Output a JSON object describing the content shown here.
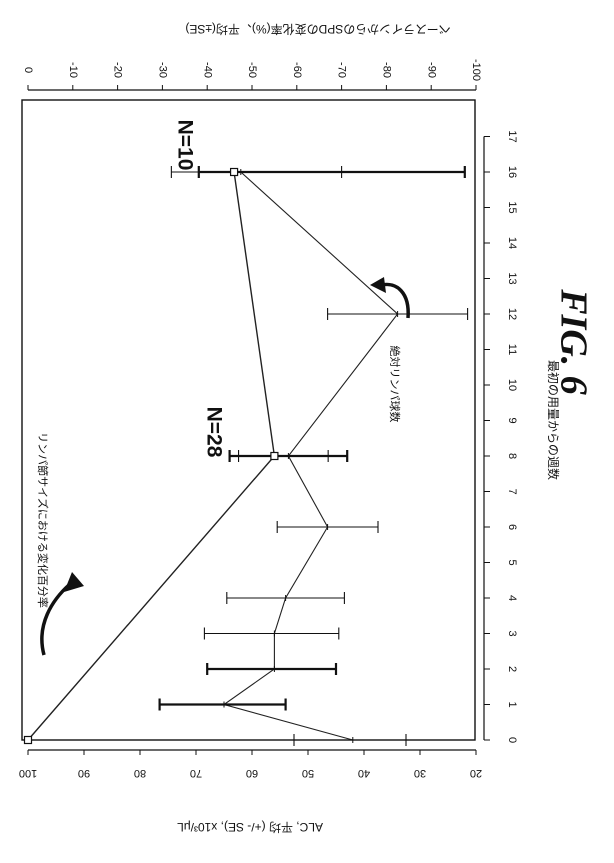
{
  "chart_data": {
    "type": "line",
    "orientation": "rotated-90-clockwise",
    "figure_label": "FIG. 6",
    "x_axis": {
      "label": "最初の用量からの週数",
      "range": [
        0,
        17
      ],
      "ticks": [
        "0",
        "1",
        "2",
        "3",
        "4",
        "5",
        "6",
        "7",
        "8",
        "9",
        "10",
        "11",
        "12",
        "13",
        "14",
        "15",
        "16",
        "17"
      ]
    },
    "y_axis_left": {
      "label": "ALC, 平均 (+/- SE), x10³/μL",
      "range": [
        20,
        100
      ],
      "ticks": [
        "20",
        "30",
        "40",
        "50",
        "60",
        "70",
        "80",
        "90",
        "100"
      ]
    },
    "y_axis_right": {
      "label": "ベースラインからのSPDの変化率(%)、平均(±SE)",
      "range": [
        -100,
        0
      ],
      "ticks": [
        "0",
        "-10",
        "-20",
        "-30",
        "-40",
        "-50",
        "-60",
        "-70",
        "-80",
        "-90",
        "-100"
      ]
    },
    "series": [
      {
        "name": "絶対リンパ球数",
        "axis": "left",
        "marker": "cross",
        "x": [
          0,
          1,
          2,
          3,
          4,
          6,
          8,
          12,
          16
        ],
        "y": [
          42,
          65,
          56,
          56,
          54,
          46.5,
          53.5,
          34,
          62
        ],
        "err_low": [
          32.5,
          54,
          45,
          44.5,
          43.5,
          37.5,
          43,
          21.5,
          22
        ],
        "err_high": [
          52.5,
          76.5,
          68,
          68.5,
          64.5,
          55.5,
          64,
          46.5,
          69.5
        ],
        "bold_errorbars": [
          false,
          true,
          true,
          false,
          false,
          false,
          true,
          false,
          true
        ]
      },
      {
        "name": "リンパ節サイズにおける変化百分率",
        "axis": "right",
        "marker": "square",
        "x": [
          0,
          8,
          16
        ],
        "y": [
          0,
          -55,
          -46
        ],
        "err_low": [
          null,
          -67,
          -70
        ],
        "err_high": [
          null,
          -47,
          -32
        ]
      }
    ],
    "annotations": [
      {
        "text": "リンパ節サイズにおける変化百分率",
        "target_series": "リンパ節サイズにおける変化百分率"
      },
      {
        "text": "絶対リンパ球数",
        "target_series": "絶対リンパ球数"
      },
      {
        "text": "N=28",
        "near_x": 8
      },
      {
        "text": "N=10",
        "near_x": 16
      }
    ],
    "grid": false,
    "legend": "none"
  }
}
